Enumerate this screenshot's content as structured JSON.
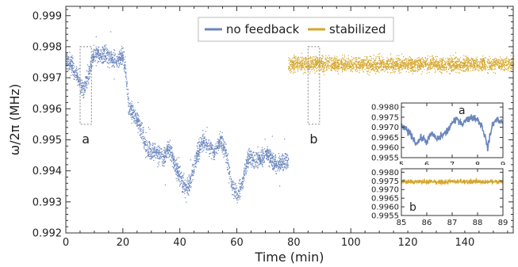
{
  "chart_data": {
    "type": "scatter",
    "title": "",
    "xlabel": "Time (min)",
    "ylabel": "ω/2π (MHz)",
    "xlim": [
      0,
      157
    ],
    "ylim": [
      0.992,
      0.9993
    ],
    "x_ticks": [
      0,
      20,
      40,
      60,
      80,
      100,
      120,
      140
    ],
    "y_ticks": [
      0.992,
      0.993,
      0.994,
      0.995,
      0.996,
      0.997,
      0.998,
      0.999
    ],
    "y_tick_labels": [
      "0.992",
      "0.993",
      "0.994",
      "0.995",
      "0.996",
      "0.997",
      "0.998",
      "0.999"
    ],
    "grid": false,
    "legend": {
      "placement": "top-center"
    },
    "series": [
      {
        "name": "no feedback",
        "color": "#6b86bd",
        "x_range": [
          0,
          78
        ],
        "trend": [
          [
            0,
            0.9976
          ],
          [
            2,
            0.9974
          ],
          [
            4,
            0.997
          ],
          [
            6,
            0.9966
          ],
          [
            8,
            0.9972
          ],
          [
            10,
            0.9978
          ],
          [
            12,
            0.9977
          ],
          [
            14,
            0.9978
          ],
          [
            16,
            0.9976
          ],
          [
            18,
            0.9976
          ],
          [
            20,
            0.9977
          ],
          [
            21,
            0.9971
          ],
          [
            22,
            0.996
          ],
          [
            24,
            0.9958
          ],
          [
            26,
            0.9954
          ],
          [
            28,
            0.9948
          ],
          [
            30,
            0.9946
          ],
          [
            32,
            0.9946
          ],
          [
            34,
            0.9944
          ],
          [
            36,
            0.9948
          ],
          [
            38,
            0.9942
          ],
          [
            40,
            0.9938
          ],
          [
            42,
            0.9934
          ],
          [
            44,
            0.9938
          ],
          [
            46,
            0.9946
          ],
          [
            48,
            0.995
          ],
          [
            50,
            0.9948
          ],
          [
            52,
            0.9946
          ],
          [
            54,
            0.995
          ],
          [
            56,
            0.9946
          ],
          [
            58,
            0.9936
          ],
          [
            60,
            0.9932
          ],
          [
            62,
            0.9937
          ],
          [
            64,
            0.9945
          ],
          [
            66,
            0.9944
          ],
          [
            68,
            0.9944
          ],
          [
            70,
            0.9946
          ],
          [
            72,
            0.9944
          ],
          [
            74,
            0.9942
          ],
          [
            76,
            0.9943
          ],
          [
            78,
            0.9944
          ]
        ]
      },
      {
        "name": "stabilized",
        "color": "#d6a72c",
        "x_range": [
          78,
          157
        ],
        "center": 0.99745,
        "spread": 0.0003
      }
    ],
    "annotations": [
      {
        "label": "a",
        "x_range": [
          5,
          9
        ],
        "y_range": [
          0.9955,
          0.998
        ]
      },
      {
        "label": "b",
        "x_range": [
          85,
          89
        ],
        "y_range": [
          0.9955,
          0.998
        ]
      }
    ],
    "insets": [
      {
        "label": "a",
        "series": "no feedback",
        "xlim": [
          5,
          9
        ],
        "ylim": [
          0.9955,
          0.9982
        ],
        "x_ticks": [
          5,
          6,
          7,
          8,
          9
        ],
        "y_ticks": [
          0.9955,
          0.996,
          0.9965,
          0.997,
          0.9975,
          0.998
        ],
        "y_tick_labels": [
          "0.9955",
          "0.9960",
          "0.9965",
          "0.9970",
          "0.9975",
          "0.9980"
        ],
        "trend": [
          [
            5.0,
            0.997
          ],
          [
            5.2,
            0.9969
          ],
          [
            5.4,
            0.9966
          ],
          [
            5.6,
            0.9962
          ],
          [
            5.8,
            0.9965
          ],
          [
            6.0,
            0.9963
          ],
          [
            6.2,
            0.9967
          ],
          [
            6.4,
            0.9964
          ],
          [
            6.6,
            0.9966
          ],
          [
            6.8,
            0.9968
          ],
          [
            7.0,
            0.9972
          ],
          [
            7.2,
            0.9974
          ],
          [
            7.4,
            0.9972
          ],
          [
            7.6,
            0.9974
          ],
          [
            7.8,
            0.9975
          ],
          [
            8.0,
            0.9974
          ],
          [
            8.2,
            0.997
          ],
          [
            8.4,
            0.996
          ],
          [
            8.6,
            0.9972
          ],
          [
            8.8,
            0.9974
          ],
          [
            9.0,
            0.9972
          ]
        ]
      },
      {
        "label": "b",
        "series": "stabilized",
        "xlim": [
          85,
          89
        ],
        "ylim": [
          0.9955,
          0.9982
        ],
        "x_ticks": [
          85,
          86,
          87,
          88,
          89
        ],
        "y_ticks": [
          0.9955,
          0.996,
          0.9965,
          0.997,
          0.9975,
          0.998
        ],
        "y_tick_labels": [
          "0.9955",
          "0.9960",
          "0.9965",
          "0.9970",
          "0.9975",
          "0.9980"
        ],
        "center": 0.99745
      }
    ]
  }
}
